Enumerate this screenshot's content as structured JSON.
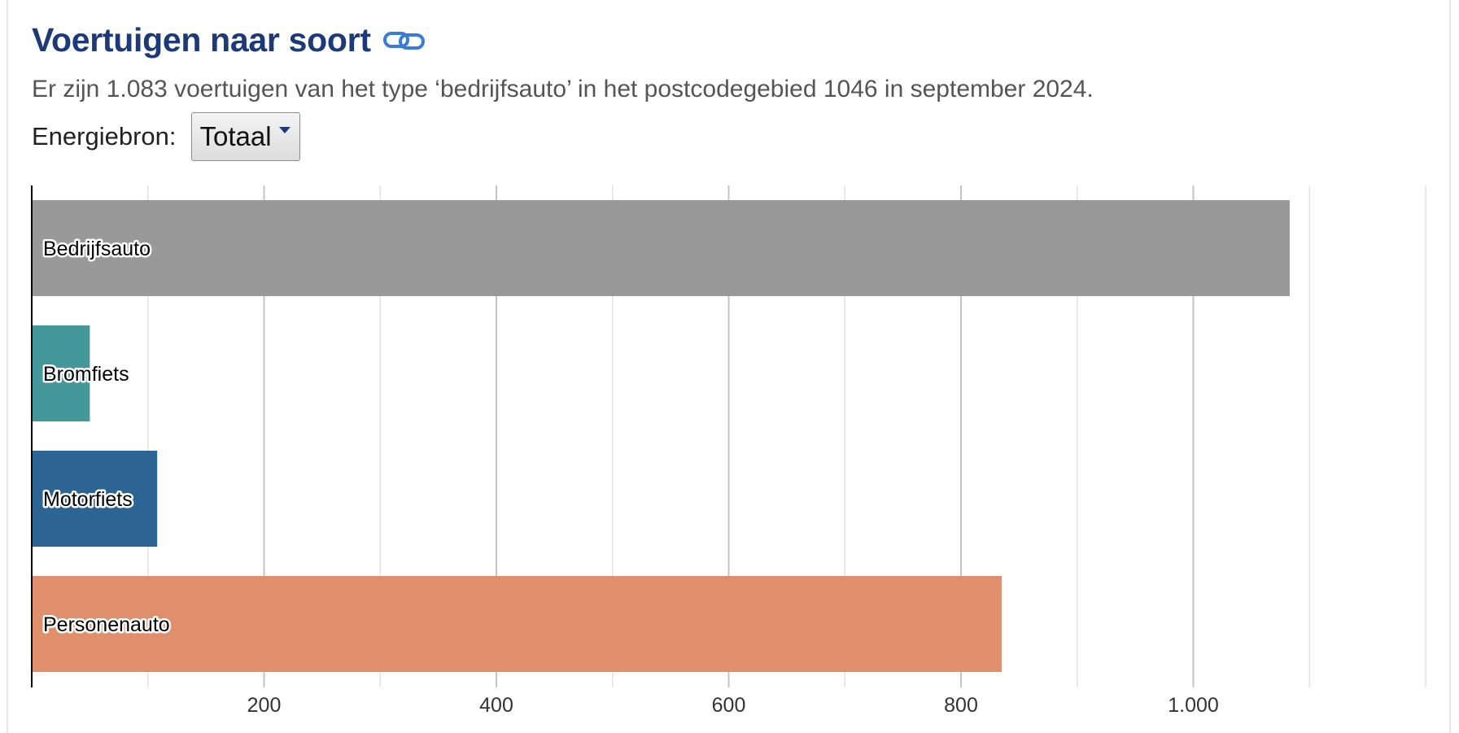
{
  "header": {
    "title": "Voertuigen naar soort",
    "link_icon": "link-icon",
    "subtitle": "Er zijn 1.083 voertuigen van het type ‘bedrijfsauto’ in het postcodegebied 1046 in september 2024."
  },
  "filter": {
    "label": "Energiebron:",
    "selected": "Totaal"
  },
  "colors": {
    "title": "#1c3a78",
    "link_icon": "#3a7bd5"
  },
  "chart_data": {
    "type": "bar",
    "orientation": "horizontal",
    "categories": [
      "Bedrijfsauto",
      "Bromfiets",
      "Motorfiets",
      "Personenauto"
    ],
    "values": [
      1083,
      50,
      108,
      835
    ],
    "colors": [
      "#999999",
      "#44989a",
      "#2c6494",
      "#e08f6c"
    ],
    "xlim": [
      0,
      1200
    ],
    "xticks": [
      200,
      400,
      600,
      800,
      1000
    ],
    "xtick_labels": [
      "200",
      "400",
      "600",
      "800",
      "1.000"
    ],
    "grid": true,
    "title": "",
    "xlabel": "",
    "ylabel": ""
  }
}
